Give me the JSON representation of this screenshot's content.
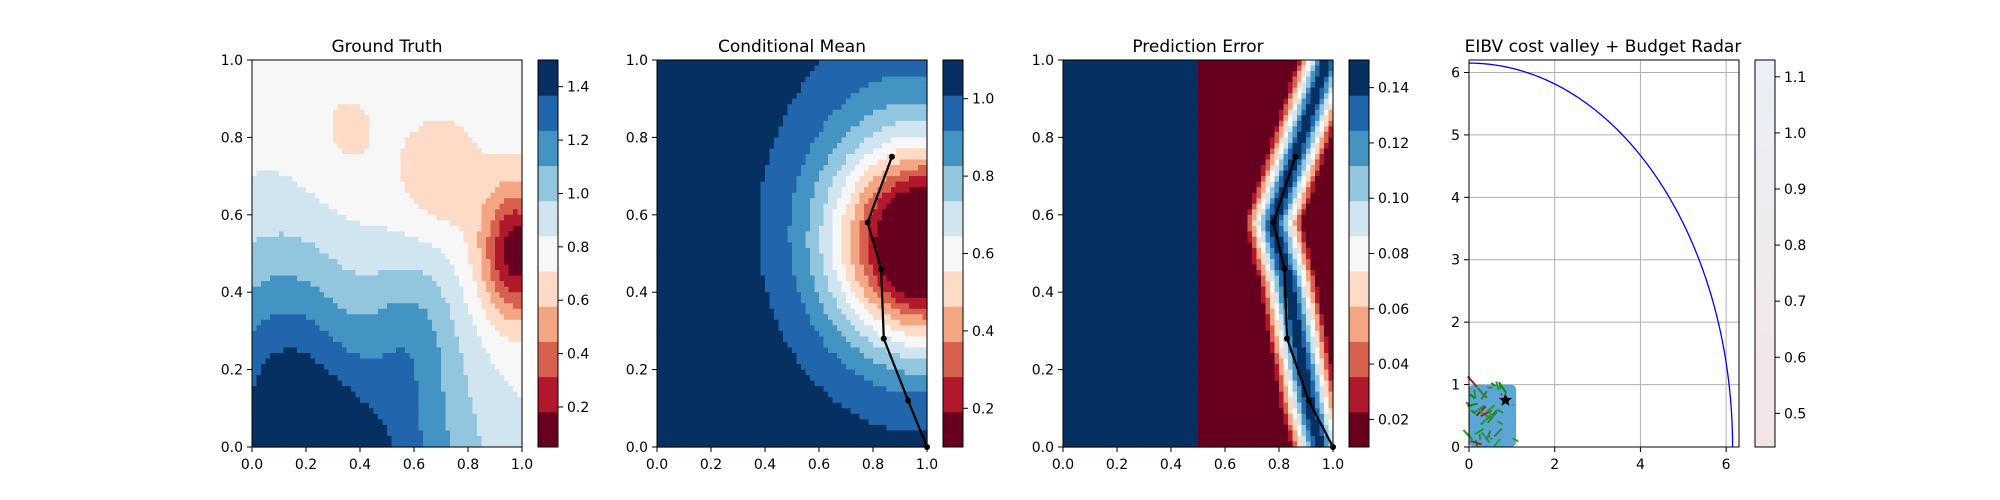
{
  "figure": {
    "background": "#ffffff",
    "cmap": [
      "#67001f",
      "#b2182b",
      "#d6604d",
      "#f4a582",
      "#fddbc7",
      "#f7f7f7",
      "#d1e5f0",
      "#92c5de",
      "#4393c3",
      "#2166ac",
      "#053061"
    ]
  },
  "chart_data": [
    {
      "type": "heatmap",
      "title": "Ground Truth",
      "xlabel": "",
      "ylabel": "",
      "xlim": [
        0,
        1
      ],
      "ylim": [
        0,
        1
      ],
      "xticks": [
        "0.0",
        "0.2",
        "0.4",
        "0.6",
        "0.8",
        "1.0"
      ],
      "yticks": [
        "0.0",
        "0.2",
        "0.4",
        "0.6",
        "0.8",
        "1.0"
      ],
      "field": "ground_truth",
      "colorbar": {
        "min": 0.05,
        "max": 1.5,
        "levels": 11,
        "ticks": [
          "0.2",
          "0.4",
          "0.6",
          "0.8",
          "1.0",
          "1.2",
          "1.4"
        ]
      },
      "path": []
    },
    {
      "type": "heatmap",
      "title": "Conditional Mean",
      "xlabel": "",
      "ylabel": "",
      "xlim": [
        0,
        1
      ],
      "ylim": [
        0,
        1
      ],
      "xticks": [
        "0.0",
        "0.2",
        "0.4",
        "0.6",
        "0.8",
        "1.0"
      ],
      "yticks": [
        "0.0",
        "0.2",
        "0.4",
        "0.6",
        "0.8",
        "1.0"
      ],
      "field": "conditional_mean",
      "colorbar": {
        "min": 0.1,
        "max": 1.1,
        "levels": 11,
        "ticks": [
          "0.2",
          "0.4",
          "0.6",
          "0.8",
          "1.0"
        ]
      },
      "path": [
        [
          1.0,
          0.0
        ],
        [
          0.93,
          0.12
        ],
        [
          0.84,
          0.28
        ],
        [
          0.83,
          0.46
        ],
        [
          0.78,
          0.58
        ],
        [
          0.87,
          0.75
        ]
      ]
    },
    {
      "type": "heatmap",
      "title": "Prediction Error",
      "xlabel": "",
      "ylabel": "",
      "xlim": [
        0,
        1
      ],
      "ylim": [
        0,
        1
      ],
      "xticks": [
        "0.0",
        "0.2",
        "0.4",
        "0.6",
        "0.8",
        "1.0"
      ],
      "yticks": [
        "0.0",
        "0.2",
        "0.4",
        "0.6",
        "0.8",
        "1.0"
      ],
      "field": "prediction_error",
      "colorbar": {
        "min": 0.01,
        "max": 0.15,
        "levels": 11,
        "ticks": [
          "0.02",
          "0.04",
          "0.06",
          "0.08",
          "0.10",
          "0.12",
          "0.14"
        ]
      },
      "path": [
        [
          1.0,
          0.0
        ],
        [
          0.91,
          0.12
        ],
        [
          0.83,
          0.28
        ],
        [
          0.82,
          0.46
        ],
        [
          0.78,
          0.58
        ],
        [
          0.86,
          0.75
        ]
      ]
    },
    {
      "type": "line",
      "title": "EIBV cost valley + Budget Radar",
      "xlabel": "",
      "ylabel": "",
      "xlim": [
        0,
        6.3
      ],
      "ylim": [
        0,
        6.2
      ],
      "xticks": [
        "0",
        "2",
        "4",
        "6"
      ],
      "yticks": [
        "0",
        "1",
        "2",
        "3",
        "4",
        "5",
        "6"
      ],
      "grid": true,
      "series": [
        {
          "kind": "budget_ellipse",
          "color": "#0000ff",
          "center": [
            0,
            0
          ],
          "radius_x": 6.15,
          "radius_y": 6.15
        }
      ],
      "valley_patch": {
        "xlim": [
          0,
          1.1
        ],
        "ylim": [
          0,
          1.0
        ]
      },
      "marker": {
        "x": 0.85,
        "y": 0.75,
        "symbol": "star"
      },
      "colorbar": {
        "min": 0.44,
        "max": 1.13,
        "ticks": [
          "0.5",
          "0.6",
          "0.7",
          "0.8",
          "0.9",
          "1.0",
          "1.1"
        ]
      }
    }
  ]
}
